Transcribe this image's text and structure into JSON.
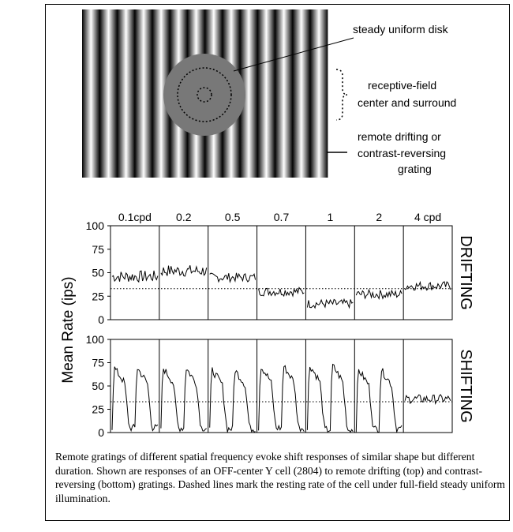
{
  "stimulus": {
    "labels": {
      "disk": "steady uniform disk",
      "rf_line1": "receptive-field",
      "rf_line2": "center and surround",
      "grating_line1": "remote drifting or",
      "grating_line2": "contrast-reversing",
      "grating_line3": "grating"
    },
    "stripe_count": 14,
    "disk_color": "#787878"
  },
  "chart_data": {
    "type": "line",
    "ylabel": "Mean Rate (ips)",
    "ylim": [
      0,
      100
    ],
    "yticks": [
      "0",
      "25",
      "50",
      "75",
      "100"
    ],
    "resting_rate": 33,
    "categories": [
      "0.1cpd",
      "0.2",
      "0.5",
      "0.7",
      "1",
      "2",
      "4 cpd"
    ],
    "panels": [
      {
        "name": "DRIFTING",
        "segments": [
          {
            "category": "0.1cpd",
            "mean": 46,
            "noise": 4
          },
          {
            "category": "0.2",
            "mean": 52,
            "noise": 4
          },
          {
            "category": "0.5",
            "mean": 45,
            "noise": 3
          },
          {
            "category": "0.7",
            "mean": 30,
            "noise": 3
          },
          {
            "category": "1",
            "mean": 17,
            "noise": 3
          },
          {
            "category": "2",
            "mean": 27,
            "noise": 3
          },
          {
            "category": "4 cpd",
            "mean": 36,
            "noise": 3
          }
        ]
      },
      {
        "name": "SHIFTING",
        "segments": [
          {
            "category": "0.1cpd",
            "peak": 70,
            "trough": 5
          },
          {
            "category": "0.2",
            "peak": 70,
            "trough": 5
          },
          {
            "category": "0.5",
            "peak": 68,
            "trough": 4
          },
          {
            "category": "0.7",
            "peak": 72,
            "trough": 5
          },
          {
            "category": "1",
            "peak": 73,
            "trough": 3
          },
          {
            "category": "2",
            "peak": 68,
            "trough": 4
          },
          {
            "category": "4 cpd",
            "mean": 36,
            "noise": 3
          }
        ]
      }
    ]
  },
  "caption": "Remote gratings of different spatial frequency evoke shift responses of similar shape but different duration. Shown are responses of an OFF-center Y cell (2804) to remote drifting (top) and contrast-reversing (bottom) gratings. Dashed lines mark the resting rate of the cell under full-field steady uniform illumination."
}
